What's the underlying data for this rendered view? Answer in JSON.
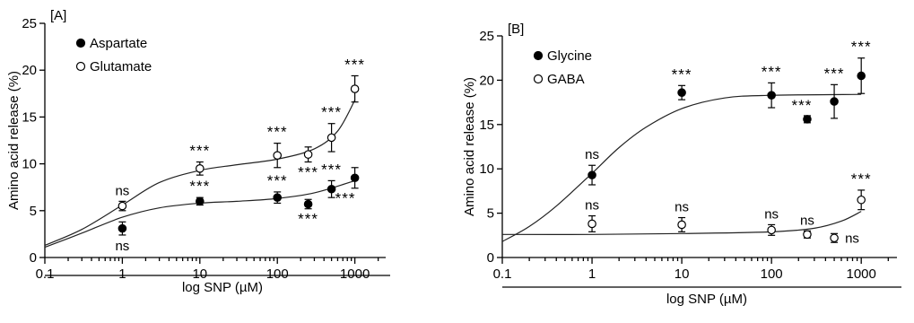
{
  "chart_data": [
    {
      "type": "scatter",
      "panel_label": "[A]",
      "xlabel": "log SNP (µM)",
      "ylabel": "Amino acid release (%)",
      "x_scale": "log",
      "xlim": [
        0.1,
        2500
      ],
      "ylim": [
        0,
        25
      ],
      "x_ticks": [
        0.1,
        1,
        10,
        100,
        1000
      ],
      "x_tick_labels": [
        "0.1",
        "1",
        "10",
        "100",
        "1000"
      ],
      "y_ticks": [
        0,
        5,
        10,
        15,
        20,
        25
      ],
      "y_tick_labels": [
        "0",
        "5",
        "10",
        "15",
        "20",
        "25"
      ],
      "legend_position": "top-left",
      "series": [
        {
          "name": "Aspartate",
          "marker": "filled-circle",
          "x": [
            1,
            10,
            100,
            250,
            500,
            1000
          ],
          "y": [
            3.1,
            6.0,
            6.4,
            5.7,
            7.3,
            8.5
          ],
          "err": [
            0.7,
            0.4,
            0.6,
            0.5,
            0.9,
            1.1
          ],
          "fit": [
            [
              0.1,
              1.1
            ],
            [
              0.3,
              2.6
            ],
            [
              1,
              4.3
            ],
            [
              3,
              5.3
            ],
            [
              10,
              5.8
            ],
            [
              30,
              6.0
            ],
            [
              100,
              6.3
            ],
            [
              300,
              6.9
            ],
            [
              1000,
              8.2
            ]
          ],
          "labels": [
            {
              "x": 1,
              "y": 3.1,
              "text": "ns",
              "placement": "below"
            },
            {
              "x": 10,
              "y": 6.0,
              "text": "***",
              "placement": "above"
            },
            {
              "x": 100,
              "y": 6.4,
              "text": "***",
              "placement": "above"
            },
            {
              "x": 250,
              "y": 5.7,
              "text": "***",
              "placement": "below"
            },
            {
              "x": 500,
              "y": 7.3,
              "text": "***",
              "placement": "above"
            },
            {
              "x": 1000,
              "y": 8.5,
              "text": "***",
              "placement": "right-below"
            }
          ]
        },
        {
          "name": "Glutamate",
          "marker": "open-circle",
          "x": [
            1,
            10,
            100,
            250,
            500,
            1000
          ],
          "y": [
            5.5,
            9.5,
            10.9,
            11.0,
            12.8,
            18.0
          ],
          "err": [
            0.5,
            0.7,
            1.3,
            0.8,
            1.5,
            1.4
          ],
          "fit": [
            [
              0.1,
              1.3
            ],
            [
              0.3,
              3.0
            ],
            [
              1,
              5.6
            ],
            [
              3,
              8.0
            ],
            [
              10,
              9.3
            ],
            [
              30,
              9.9
            ],
            [
              100,
              10.5
            ],
            [
              300,
              11.6
            ],
            [
              600,
              13.5
            ],
            [
              1000,
              16.8
            ]
          ],
          "labels": [
            {
              "x": 1,
              "y": 5.5,
              "text": "ns",
              "placement": "above"
            },
            {
              "x": 10,
              "y": 9.5,
              "text": "***",
              "placement": "above"
            },
            {
              "x": 100,
              "y": 10.9,
              "text": "***",
              "placement": "above"
            },
            {
              "x": 250,
              "y": 11.0,
              "text": "***",
              "placement": "below"
            },
            {
              "x": 500,
              "y": 12.8,
              "text": "***",
              "placement": "above"
            },
            {
              "x": 1000,
              "y": 18.0,
              "text": "***",
              "placement": "above"
            }
          ]
        }
      ]
    },
    {
      "type": "scatter",
      "panel_label": "[B]",
      "xlabel": "log SNP (µM)",
      "ylabel": "Amino acid release (%)",
      "x_scale": "log",
      "xlim": [
        0.1,
        2500
      ],
      "ylim": [
        0,
        25
      ],
      "x_ticks": [
        0.1,
        1,
        10,
        100,
        1000
      ],
      "x_tick_labels": [
        "0.1",
        "1",
        "10",
        "100",
        "1000"
      ],
      "y_ticks": [
        0,
        5,
        10,
        15,
        20,
        25
      ],
      "y_tick_labels": [
        "0",
        "5",
        "10",
        "15",
        "20",
        "25"
      ],
      "legend_position": "top-left",
      "series": [
        {
          "name": "Glycine",
          "marker": "filled-circle",
          "x": [
            1,
            10,
            100,
            250,
            500,
            1000
          ],
          "y": [
            9.3,
            18.6,
            18.3,
            15.6,
            17.6,
            20.5
          ],
          "err": [
            1.1,
            0.8,
            1.4,
            0.4,
            1.9,
            2.0
          ],
          "fit": [
            [
              0.1,
              1.8
            ],
            [
              0.2,
              3.5
            ],
            [
              0.4,
              5.8
            ],
            [
              1,
              9.5
            ],
            [
              2,
              12.4
            ],
            [
              4,
              14.7
            ],
            [
              10,
              16.8
            ],
            [
              30,
              18.0
            ],
            [
              100,
              18.3
            ],
            [
              1000,
              18.4
            ]
          ],
          "labels": [
            {
              "x": 1,
              "y": 9.3,
              "text": "ns",
              "placement": "above"
            },
            {
              "x": 10,
              "y": 18.6,
              "text": "***",
              "placement": "above"
            },
            {
              "x": 100,
              "y": 18.3,
              "text": "***",
              "placement": "above"
            },
            {
              "x": 250,
              "y": 15.6,
              "text": "***",
              "placement": "above-left"
            },
            {
              "x": 500,
              "y": 17.6,
              "text": "***",
              "placement": "above"
            },
            {
              "x": 1000,
              "y": 20.5,
              "text": "***",
              "placement": "above"
            }
          ]
        },
        {
          "name": "GABA",
          "marker": "open-circle",
          "x": [
            1,
            10,
            100,
            250,
            500,
            1000
          ],
          "y": [
            3.8,
            3.7,
            3.1,
            2.6,
            2.2,
            6.5
          ],
          "err": [
            0.9,
            0.8,
            0.6,
            0.4,
            0.5,
            1.1
          ],
          "fit": [
            [
              0.1,
              2.6
            ],
            [
              1,
              2.6
            ],
            [
              10,
              2.7
            ],
            [
              100,
              2.9
            ],
            [
              300,
              3.3
            ],
            [
              600,
              4.1
            ],
            [
              1000,
              5.2
            ]
          ],
          "labels": [
            {
              "x": 1,
              "y": 3.8,
              "text": "ns",
              "placement": "above"
            },
            {
              "x": 10,
              "y": 3.7,
              "text": "ns",
              "placement": "above"
            },
            {
              "x": 100,
              "y": 3.1,
              "text": "ns",
              "placement": "above"
            },
            {
              "x": 250,
              "y": 2.6,
              "text": "ns",
              "placement": "above"
            },
            {
              "x": 500,
              "y": 2.2,
              "text": "ns",
              "placement": "right"
            },
            {
              "x": 1000,
              "y": 6.5,
              "text": "***",
              "placement": "above"
            }
          ]
        }
      ]
    }
  ]
}
